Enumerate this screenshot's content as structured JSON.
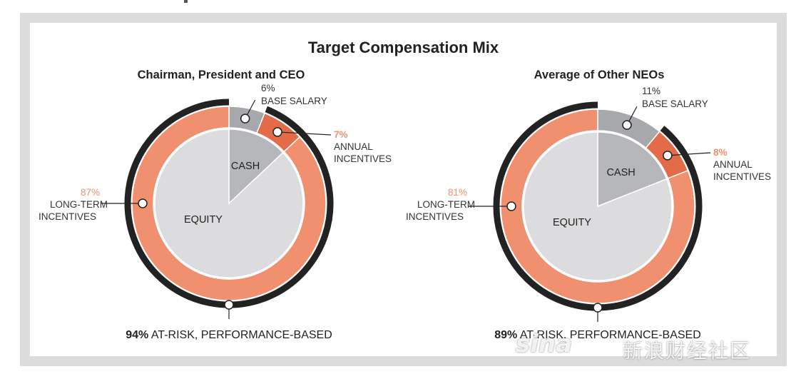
{
  "chart_data": [
    {
      "type": "pie",
      "title": "Target Compensation Mix",
      "subtitle": "Chairman, President and CEO",
      "slices": [
        {
          "label": "BASE SALARY",
          "value": 6,
          "value_label": "6%",
          "color": "#a6a8ab"
        },
        {
          "label": "ANNUAL INCENTIVES",
          "value": 7,
          "value_label": "7%",
          "color": "#e36b47"
        },
        {
          "label": "LONG-TERM INCENTIVES",
          "value": 87,
          "value_label": "87%",
          "color": "#f0906f"
        }
      ],
      "inner_groups": [
        {
          "label": "CASH",
          "value": 13,
          "color": "#b5b7ba"
        },
        {
          "label": "EQUITY",
          "value": 87,
          "color": "#dcdcde"
        }
      ],
      "at_risk": {
        "value": 94,
        "label": "94% AT-RISK, PERFORMANCE-BASED"
      }
    },
    {
      "type": "pie",
      "title": "Target Compensation Mix",
      "subtitle": "Average of Other NEOs",
      "slices": [
        {
          "label": "BASE SALARY",
          "value": 11,
          "value_label": "11%",
          "color": "#a6a8ab"
        },
        {
          "label": "ANNUAL INCENTIVES",
          "value": 8,
          "value_label": "8%",
          "color": "#e36b47"
        },
        {
          "label": "LONG-TERM INCENTIVES",
          "value": 81,
          "value_label": "81%",
          "color": "#f0906f"
        }
      ],
      "inner_groups": [
        {
          "label": "CASH",
          "value": 19,
          "color": "#b5b7ba"
        },
        {
          "label": "EQUITY",
          "value": 81,
          "color": "#dcdcde"
        }
      ],
      "at_risk": {
        "value": 89,
        "label": "89% AT-RISK, PERFORMANCE-BASED"
      }
    }
  ],
  "page": {
    "main_title": "Target Compensation Mix",
    "left_title": "Chairman, President and CEO",
    "right_title": "Average of Other NEOs"
  },
  "watermark": {
    "logo": "sina",
    "text": "新浪财经社区"
  },
  "colors": {
    "frame": "#dcdcdc",
    "ring_outer": "#222222",
    "accent_text": "#f0906f"
  }
}
